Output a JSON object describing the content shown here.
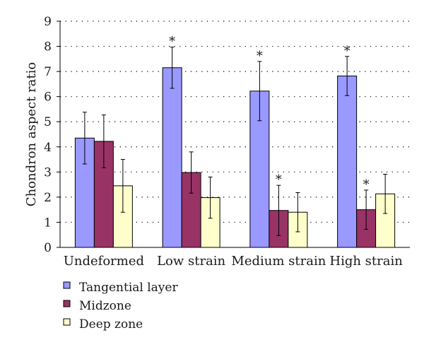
{
  "chart_data": {
    "type": "bar",
    "title": "",
    "xlabel": "",
    "ylabel": "Chondron aspect ratio",
    "ylim": [
      0,
      9
    ],
    "yticks": [
      "0",
      "1",
      "2",
      "3",
      "4",
      "5",
      "6",
      "7",
      "8",
      "9"
    ],
    "grid": "horizontal dotted",
    "legend_position": "bottom-left",
    "categories": [
      "Undeformed",
      "Low strain",
      "Medium strain",
      "High strain"
    ],
    "series": [
      {
        "name": "Tangential layer",
        "color": "#9999ff",
        "values": [
          4.35,
          7.15,
          6.22,
          6.82
        ],
        "errors": [
          1.03,
          0.82,
          1.18,
          0.78
        ],
        "significant": [
          false,
          true,
          true,
          true
        ]
      },
      {
        "name": "Midzone",
        "color": "#993366",
        "values": [
          4.22,
          2.98,
          1.47,
          1.5
        ],
        "errors": [
          1.05,
          0.82,
          1.0,
          0.78
        ],
        "significant": [
          false,
          false,
          true,
          true
        ]
      },
      {
        "name": "Deep zone",
        "color": "#ffffcc",
        "values": [
          2.45,
          1.98,
          1.4,
          2.13
        ],
        "errors": [
          1.05,
          0.82,
          0.78,
          0.78
        ],
        "significant": [
          false,
          false,
          false,
          false
        ]
      }
    ],
    "significance_marker": "*"
  }
}
